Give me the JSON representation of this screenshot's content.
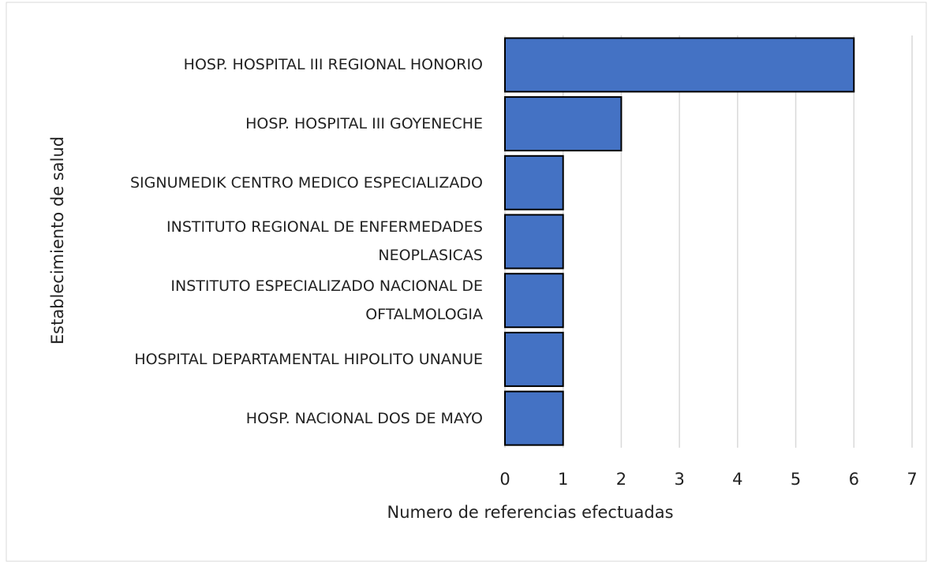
{
  "chart_data": {
    "type": "barh",
    "categories": [
      "HOSP. HOSPITAL III REGIONAL HONORIO",
      "HOSP. HOSPITAL III GOYENECHE",
      "SIGNUMEDIK CENTRO MEDICO ESPECIALIZADO",
      "INSTITUTO REGIONAL DE ENFERMEDADES NEOPLASICAS",
      "INSTITUTO ESPECIALIZADO NACIONAL DE OFTALMOLOGIA",
      "HOSPITAL DEPARTAMENTAL HIPOLITO UNANUE",
      "HOSP. NACIONAL  DOS DE MAYO"
    ],
    "values": [
      6,
      2,
      1,
      1,
      1,
      1,
      1
    ],
    "color": "#4472c4",
    "xlim": [
      0,
      7
    ],
    "xticks": [
      0,
      1,
      2,
      3,
      4,
      5,
      6,
      7
    ],
    "grid": true,
    "x_label": "Numero de referencias efectuadas",
    "y_label": "Establecimiento de salud"
  }
}
